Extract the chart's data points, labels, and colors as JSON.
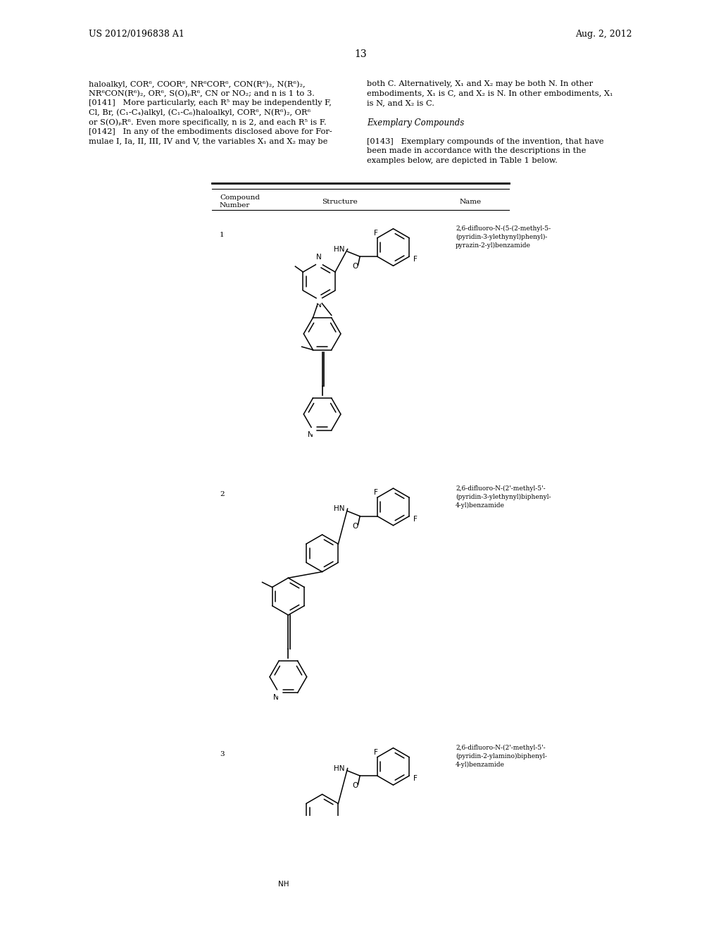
{
  "bg_color": "#ffffff",
  "page_width": 10.24,
  "page_height": 13.2,
  "header_left": "US 2012/0196838 A1",
  "header_right": "Aug. 2, 2012",
  "page_number": "13",
  "left_text_lines": [
    "haloalkyl, COR⁶, COOR⁶, NR⁶COR⁶, CON(R⁶)₂, N(R⁶)₂,",
    "NR⁶CON(R⁶)₂, OR⁶, S(O)ₚR⁶, CN or NO₂; and n is 1 to 3.",
    "[0141]   More particularly, each R⁵ may be independently F,",
    "Cl, Br, (C₁-C₄)alkyl, (C₁-C₆)haloalkyl, COR⁶, N(R⁶)₂, OR⁶",
    "or S(O)ₚR⁶. Even more specifically, n is 2, and each R⁵ is F.",
    "[0142]   In any of the embodiments disclosed above for For-",
    "mulae I, Ia, II, III, IV and V, the variables X₁ and X₂ may be"
  ],
  "right_text_lines": [
    "both C. Alternatively, X₁ and X₂ may be both N. In other",
    "embodiments, X₁ is C, and X₂ is N. In other embodiments, X₁",
    "is N, and X₂ is C.",
    "",
    "Exemplary Compounds",
    "",
    "[0143]   Exemplary compounds of the invention, that have",
    "been made in accordance with the descriptions in the",
    "examples below, are depicted in Table 1 below."
  ],
  "compound_names": [
    "2,6-difluoro-N-(5-(2-methyl-5-\n(pyridin-3-ylethynyl)phenyl)-\npyrazin-2-yl)benzamide",
    "2,6-difluoro-N-(2'-methyl-5'-\n(pyridin-3-ylethynyl)biphenyl-\n4-yl)benzamide",
    "2,6-difluoro-N-(2'-methyl-5'-\n(pyridin-2-ylamino)biphenyl-\n4-yl)benzamide"
  ]
}
